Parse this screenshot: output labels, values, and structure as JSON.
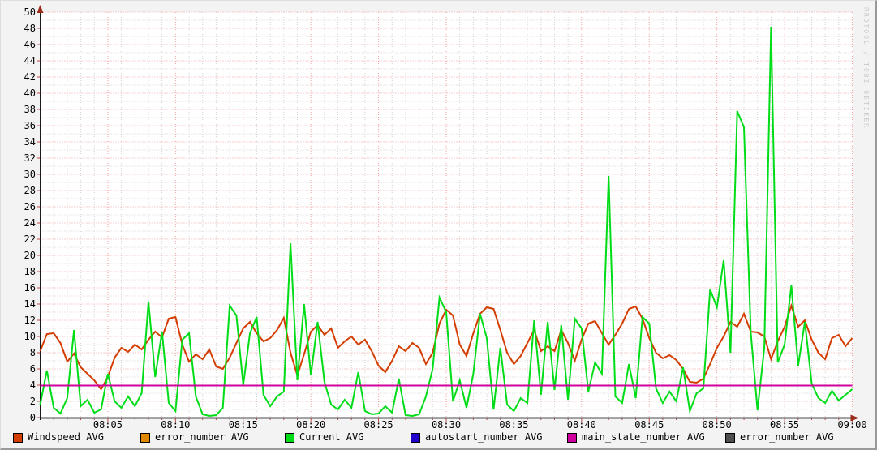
{
  "watermark": "RRDTOOL / TOBI OETIKER",
  "colors": {
    "background": "#f3f3f3",
    "canvas": "#ffffff",
    "grid_minor": "#d2d2d2",
    "grid_major": "#f2a2a2",
    "axis": "#1a1a1a",
    "tick": "#c04848",
    "arrow": "#9b2a1a",
    "label": "#000000",
    "watermark": "#c9c9c9"
  },
  "chart_data": {
    "type": "line",
    "title": "",
    "legend_position": "bottom",
    "x_axis": {
      "range_minutes": 60,
      "minor_step_minutes": 1,
      "major_step_minutes": 5,
      "tick_labels": [
        "08:05",
        "08:10",
        "08:15",
        "08:20",
        "08:25",
        "08:30",
        "08:35",
        "08:40",
        "08:45",
        "08:50",
        "08:55",
        "09:00"
      ]
    },
    "y_axis": {
      "min": 0,
      "max": 50,
      "tick_step": 2,
      "minor_step": 1,
      "tick_labels": [
        "0",
        "2",
        "4",
        "6",
        "8",
        "10",
        "12",
        "14",
        "16",
        "18",
        "20",
        "22",
        "24",
        "26",
        "28",
        "30",
        "32",
        "34",
        "36",
        "38",
        "40",
        "42",
        "44",
        "46",
        "48",
        "50"
      ]
    },
    "x_start_minutes": 0,
    "x_step_minutes": 0.5,
    "series": [
      {
        "name": "Windspeed AVG",
        "color": "#d43d02",
        "width": 2,
        "values": [
          8.2,
          10.3,
          10.4,
          9.2,
          6.9,
          7.9,
          6.2,
          5.4,
          4.6,
          3.5,
          5.0,
          7.4,
          8.6,
          8.1,
          9.0,
          8.4,
          9.6,
          10.6,
          9.9,
          12.2,
          12.4,
          9.0,
          6.9,
          7.8,
          7.2,
          8.4,
          6.3,
          6.0,
          7.4,
          9.2,
          11.0,
          11.8,
          10.4,
          9.4,
          9.8,
          10.8,
          12.3,
          8.0,
          5.2,
          7.8,
          10.6,
          11.4,
          10.2,
          11.0,
          8.6,
          9.4,
          10.0,
          9.0,
          9.6,
          8.2,
          6.4,
          5.6,
          7.0,
          8.8,
          8.2,
          9.2,
          8.6,
          6.6,
          8.0,
          11.6,
          13.3,
          12.6,
          9.0,
          7.6,
          10.4,
          12.8,
          13.6,
          13.4,
          10.8,
          8.0,
          6.6,
          7.6,
          9.2,
          10.8,
          8.2,
          8.8,
          8.2,
          10.8,
          9.2,
          7.0,
          9.6,
          11.6,
          11.9,
          10.4,
          9.0,
          10.2,
          11.6,
          13.4,
          13.7,
          12.2,
          9.8,
          8.0,
          7.3,
          7.7,
          7.1,
          6.0,
          4.4,
          4.3,
          4.8,
          6.6,
          8.6,
          10.0,
          11.8,
          11.2,
          12.8,
          10.6,
          10.5,
          10.0,
          7.2,
          9.4,
          11.2,
          13.8,
          11.2,
          12.0,
          9.6,
          8.0,
          7.2,
          9.8,
          10.2,
          8.8,
          9.8
        ]
      },
      {
        "name": "error_number AVG",
        "color": "#e18800",
        "width": 2,
        "constant": 0
      },
      {
        "name": "Current AVG",
        "color": "#00dd18",
        "width": 2,
        "values": [
          1.6,
          5.8,
          1.2,
          0.5,
          2.4,
          10.8,
          1.4,
          2.2,
          0.6,
          1.0,
          5.4,
          2.0,
          1.2,
          2.6,
          1.4,
          3.0,
          14.3,
          5.0,
          10.6,
          1.8,
          0.8,
          9.6,
          10.4,
          2.6,
          0.4,
          0.2,
          0.3,
          1.2,
          13.8,
          12.6,
          4.0,
          10.4,
          12.4,
          2.8,
          1.4,
          2.6,
          3.2,
          21.5,
          4.6,
          14.0,
          5.2,
          11.8,
          4.4,
          1.6,
          1.0,
          2.2,
          1.2,
          5.6,
          0.8,
          0.4,
          0.5,
          1.4,
          0.6,
          4.8,
          0.3,
          0.2,
          0.4,
          2.6,
          6.0,
          14.8,
          13.0,
          2.0,
          4.6,
          1.2,
          5.4,
          12.8,
          9.8,
          1.0,
          8.6,
          1.6,
          0.8,
          2.4,
          1.8,
          12.0,
          2.8,
          11.8,
          3.4,
          11.4,
          2.2,
          12.2,
          11.0,
          3.2,
          6.8,
          5.4,
          29.8,
          2.6,
          1.8,
          6.6,
          2.4,
          12.4,
          11.6,
          3.6,
          1.8,
          3.2,
          2.0,
          6.2,
          0.8,
          3.0,
          3.6,
          15.8,
          13.6,
          19.4,
          8.0,
          37.8,
          35.8,
          10.5,
          0.9,
          8.6,
          48.2,
          6.8,
          9.0,
          16.3,
          6.4,
          11.8,
          4.2,
          2.4,
          1.8,
          3.3,
          2.1,
          2.8,
          3.5
        ]
      },
      {
        "name": "autostart_number AVG",
        "color": "#2200cc",
        "width": 2,
        "constant": 0
      },
      {
        "name": "main_state_number AVG",
        "color": "#d0009e",
        "width": 2,
        "constant": 4
      },
      {
        "name": "error_number AVG",
        "color": "#4d4d4d",
        "width": 2,
        "constant": 0
      }
    ]
  }
}
